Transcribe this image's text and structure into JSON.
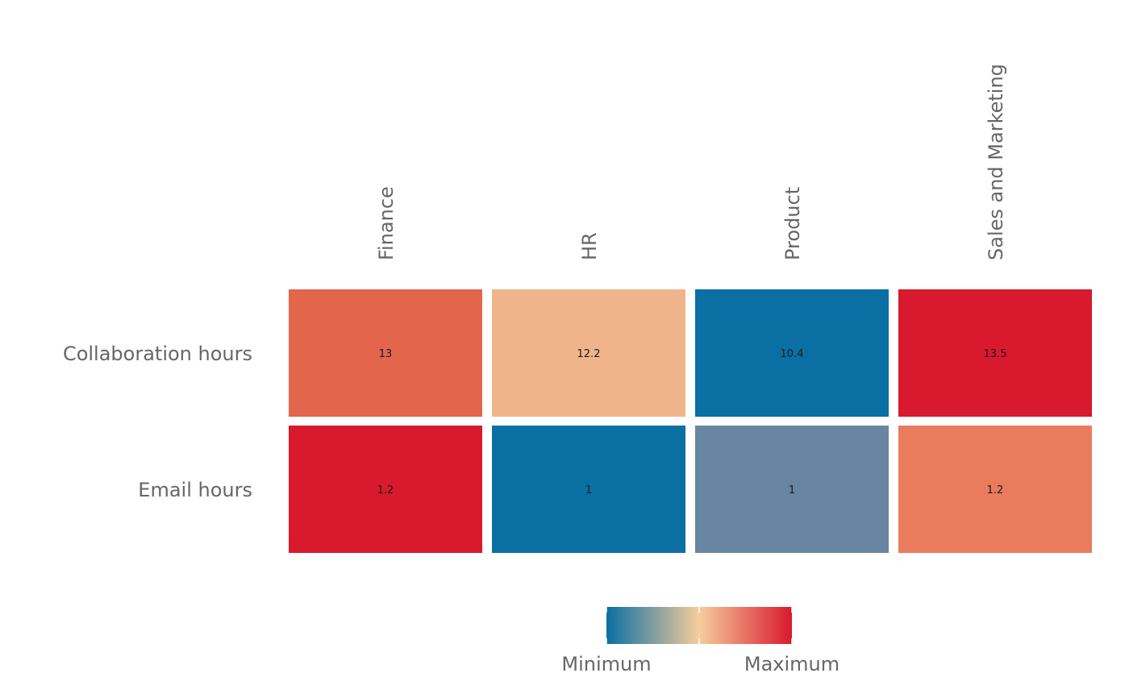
{
  "chart_data": {
    "type": "heatmap",
    "columns": [
      "Finance",
      "HR",
      "Product",
      "Sales and Marketing"
    ],
    "rows": [
      "Collaboration hours",
      "Email hours"
    ],
    "values": [
      [
        13,
        12.2,
        10.4,
        13.5
      ],
      [
        1.2,
        1,
        1,
        1.2
      ]
    ],
    "cell_labels": [
      [
        "13",
        "12.2",
        "10.4",
        "13.5"
      ],
      [
        "1.2",
        "1",
        "1",
        "1.2"
      ]
    ],
    "cell_colors": [
      [
        "#e3654c",
        "#f0b48a",
        "#0a6fa3",
        "#d9192d"
      ],
      [
        "#d9192d",
        "#0a6fa3",
        "#6886a2",
        "#ea7c5e"
      ]
    ],
    "scale": "row-wise, low to high",
    "legend": {
      "min_label": "Minimum",
      "max_label": "Maximum",
      "gradient": [
        "#0a6fa3",
        "#f5cd9c",
        "#d9192d"
      ],
      "placement": "bottom"
    }
  }
}
